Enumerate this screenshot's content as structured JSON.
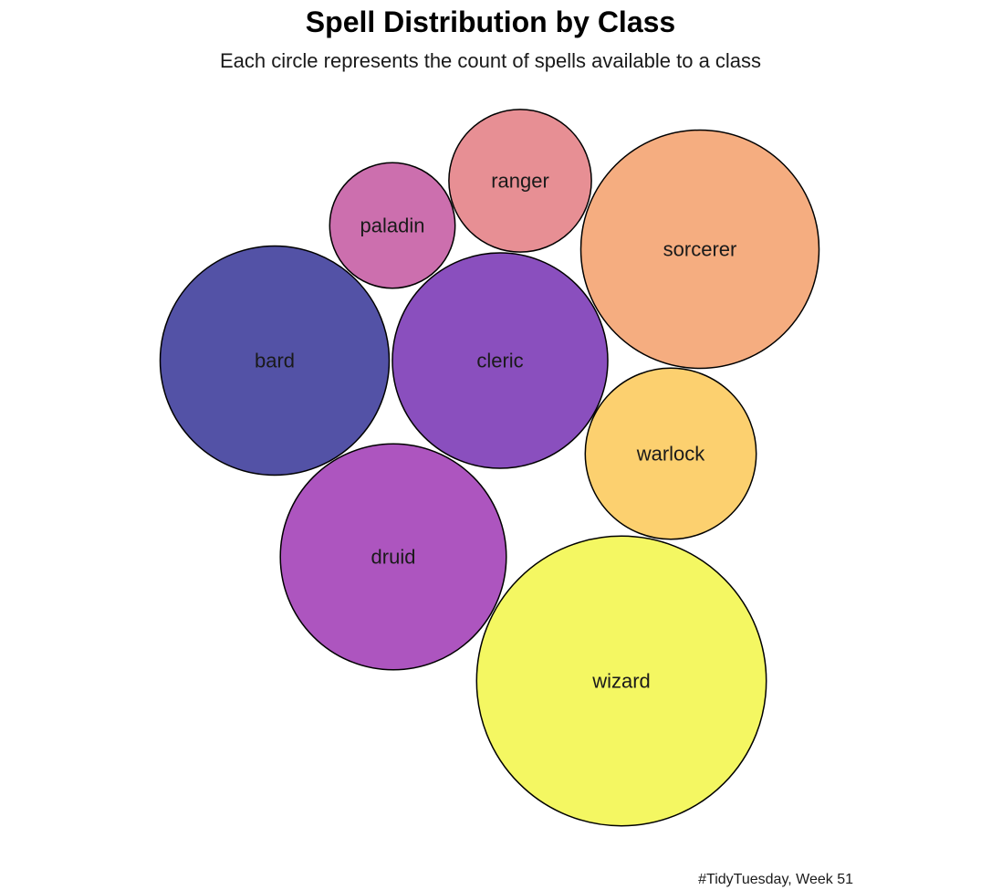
{
  "chart_data": {
    "type": "packed-bubble",
    "title": "Spell Distribution by Class",
    "subtitle": "Each circle represents the count of spells available to a class",
    "caption": "#TidyTuesday, Week 51",
    "series": [
      {
        "name": "bard",
        "value": 147,
        "color": "#5352a6"
      },
      {
        "name": "cleric",
        "value": 130,
        "color": "#8a4fbe"
      },
      {
        "name": "druid",
        "value": 143,
        "color": "#ad55bf"
      },
      {
        "name": "paladin",
        "value": 44,
        "color": "#cc6fae"
      },
      {
        "name": "ranger",
        "value": 57,
        "color": "#e78f94"
      },
      {
        "name": "sorcerer",
        "value": 159,
        "color": "#f5ad80"
      },
      {
        "name": "warlock",
        "value": 82,
        "color": "#fcd06f"
      },
      {
        "name": "wizard",
        "value": 235,
        "color": "#f4f762"
      }
    ]
  }
}
